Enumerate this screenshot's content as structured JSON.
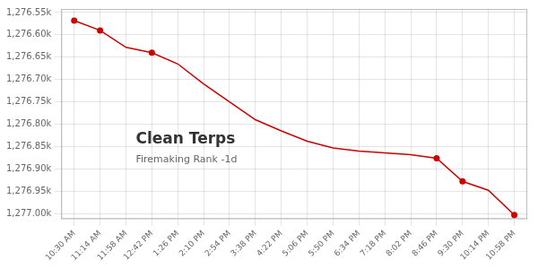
{
  "chart_data": {
    "type": "line",
    "title": "Clean Terps",
    "subtitle": "Firemaking Rank -1d",
    "categories": [
      "10:30 AM",
      "11:14 AM",
      "11:58 AM",
      "12:42 PM",
      "1:26 PM",
      "2:10 PM",
      "2:54 PM",
      "3:38 PM",
      "4:22 PM",
      "5:06 PM",
      "5:50 PM",
      "6:34 PM",
      "7:18 PM",
      "8:02 PM",
      "8:46 PM",
      "9:30 PM",
      "10:14 PM",
      "10:58 PM"
    ],
    "series": [
      {
        "color": "#cc0000",
        "marker": "none",
        "line_style": "solid",
        "values": [
          1276568,
          1276590,
          1276628,
          1276640,
          1276665,
          1276710,
          1276750,
          1276790,
          1276815,
          1276838,
          1276853,
          1276860,
          1276864,
          1276868,
          1276876,
          1276928,
          1276948,
          1277003
        ]
      },
      {
        "color": "#cc0000",
        "marker": "circle",
        "line_style": "none",
        "values": [
          1276568,
          1276590,
          null,
          1276640,
          null,
          null,
          null,
          null,
          null,
          null,
          null,
          null,
          null,
          null,
          1276876,
          1276928,
          null,
          1277003
        ]
      }
    ],
    "ylim": [
      1277012,
      1276542
    ],
    "yticks": [
      {
        "value": 1276550,
        "label": "1,276.55k"
      },
      {
        "value": 1276600,
        "label": "1,276.60k"
      },
      {
        "value": 1276650,
        "label": "1,276.65k"
      },
      {
        "value": 1276700,
        "label": "1,276.70k"
      },
      {
        "value": 1276750,
        "label": "1,276.75k"
      },
      {
        "value": 1276800,
        "label": "1,276.80k"
      },
      {
        "value": 1276850,
        "label": "1,276.85k"
      },
      {
        "value": 1276900,
        "label": "1,276.90k"
      },
      {
        "value": 1276950,
        "label": "1,276.95k"
      },
      {
        "value": 1277000,
        "label": "1,277.00k"
      }
    ],
    "grid": true
  }
}
